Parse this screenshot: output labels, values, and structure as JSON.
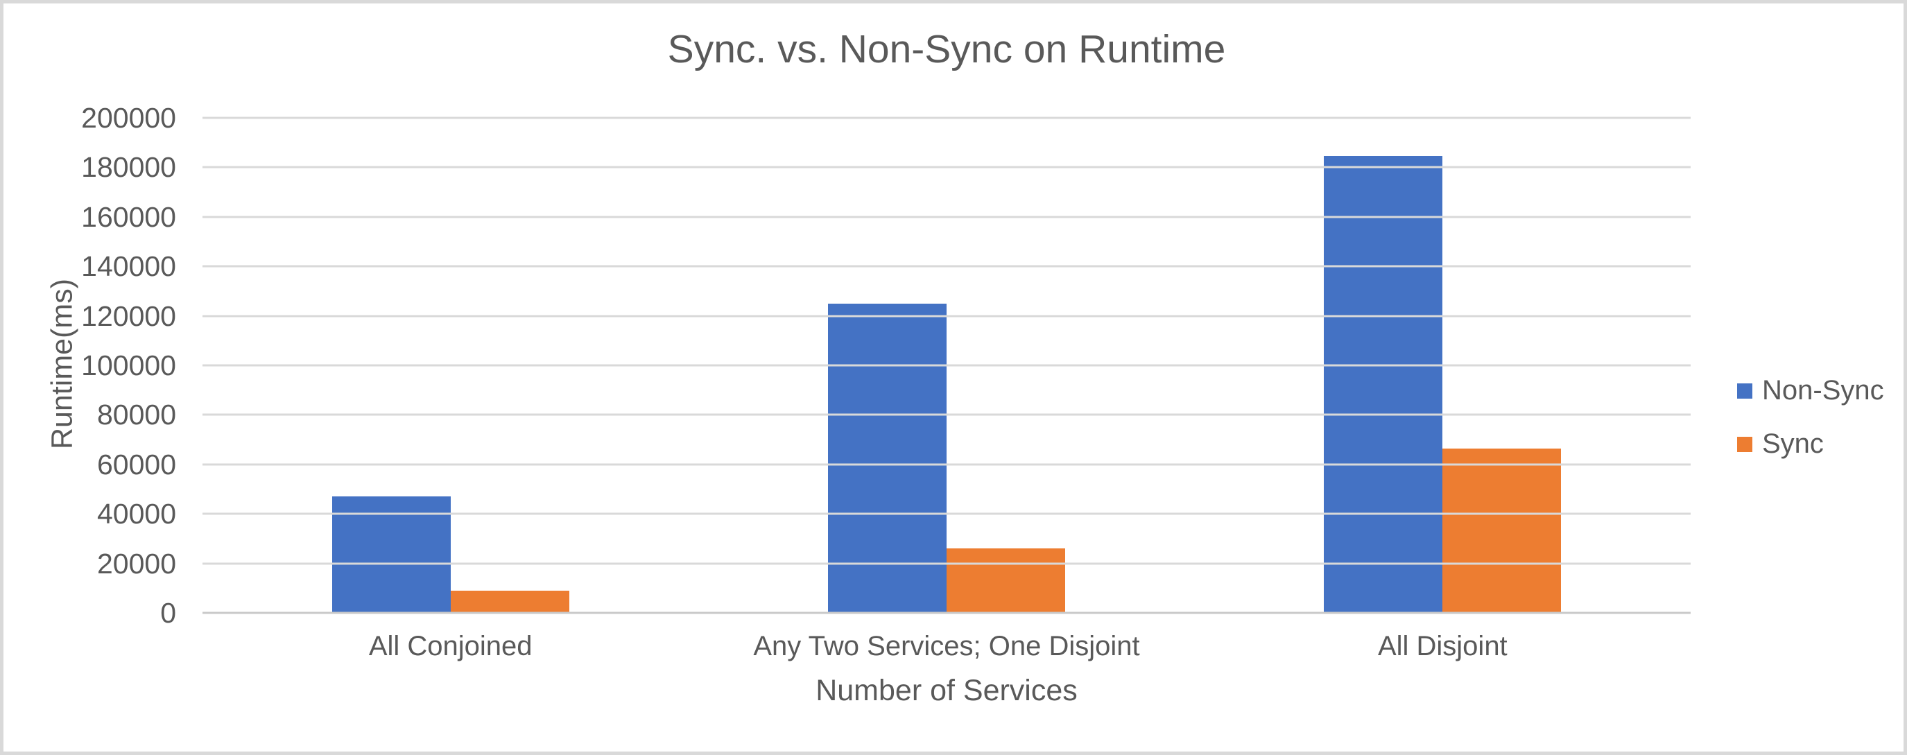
{
  "chart_data": {
    "type": "bar",
    "title": "Sync. vs. Non-Sync on Runtime",
    "xlabel": "Number of Services",
    "ylabel": "Runtime(ms)",
    "categories": [
      "All Conjoined",
      "Any Two Services; One Disjoint",
      "All Disjoint"
    ],
    "series": [
      {
        "name": "Non-Sync",
        "color": "#4472C4",
        "values": [
          47000,
          125000,
          184500
        ]
      },
      {
        "name": "Sync",
        "color": "#ED7D31",
        "values": [
          9000,
          26000,
          66500
        ]
      }
    ],
    "ylim": [
      0,
      200000
    ],
    "yticks": [
      0,
      20000,
      40000,
      60000,
      80000,
      100000,
      120000,
      140000,
      160000,
      180000,
      200000
    ],
    "grid": "horizontal",
    "legend_position": "right"
  },
  "colors": {
    "text": "#595959",
    "gridline": "#D9D9D9",
    "axis_line": "#C9C9C9",
    "frame_border": "#D9D9D9",
    "background": "#FFFFFF"
  }
}
